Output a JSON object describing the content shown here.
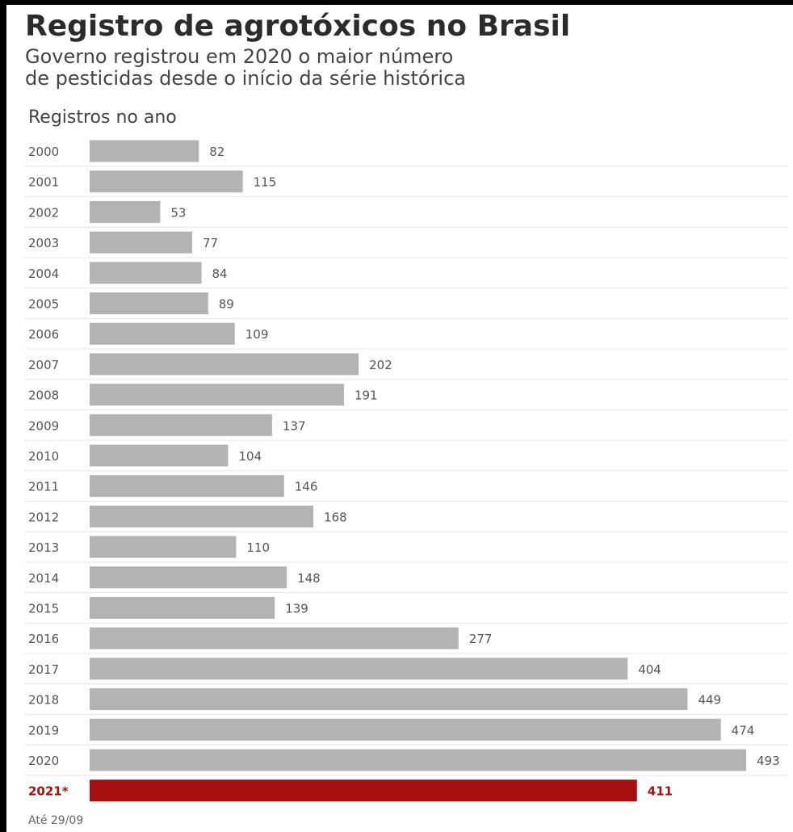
{
  "header": {
    "title": "Registro de agrotóxicos no Brasil",
    "subtitle_line1": "Governo registrou em 2020 o maior número",
    "subtitle_line2": "de pesticidas desde o início da série histórica"
  },
  "chart_section_label": "Registros no ano",
  "footnote": "Até 29/09",
  "colors": {
    "bar": "#b3b3b3",
    "highlight": "#a50f0f",
    "text": "#555555",
    "grid": "#e4e4e4"
  },
  "chart_data": {
    "type": "bar",
    "orientation": "horizontal",
    "title": "Registro de agrotóxicos no Brasil",
    "subtitle": "Governo registrou em 2020 o maior número de pesticidas desde o início da série histórica",
    "xlabel": "",
    "ylabel": "Registros no ano",
    "categories": [
      "2000",
      "2001",
      "2002",
      "2003",
      "2004",
      "2005",
      "2006",
      "2007",
      "2008",
      "2009",
      "2010",
      "2011",
      "2012",
      "2013",
      "2014",
      "2015",
      "2016",
      "2017",
      "2018",
      "2019",
      "2020",
      "2021*"
    ],
    "values": [
      82,
      115,
      53,
      77,
      84,
      89,
      109,
      202,
      191,
      137,
      104,
      146,
      168,
      110,
      148,
      139,
      277,
      404,
      449,
      474,
      493,
      411
    ],
    "highlight_category": "2021*",
    "xlim": [
      0,
      493
    ],
    "grid": true
  }
}
